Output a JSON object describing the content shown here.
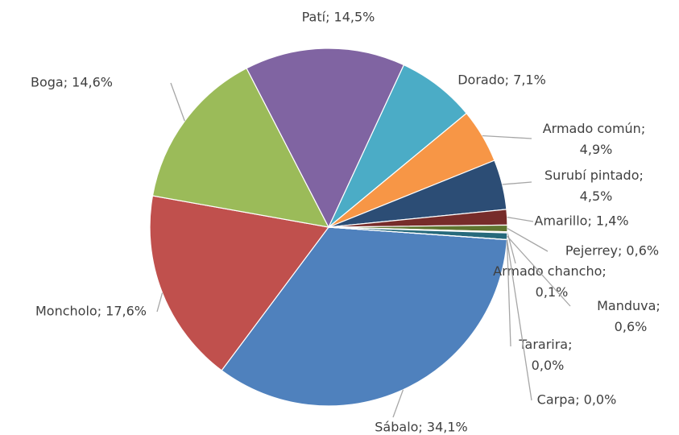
{
  "chart_data": {
    "type": "pie",
    "values": [
      34.1,
      17.6,
      14.6,
      14.5,
      7.1,
      4.9,
      4.5,
      1.4,
      0.6,
      0.1,
      0.6,
      0.0,
      0.0
    ],
    "value_labels": [
      "Sábalo; 34,1%",
      "Moncholo; 17,6%",
      "Boga; 14,6%",
      "Patí; 14,5%",
      "Dorado; 7,1%",
      "Armado común; 4,9%",
      "Surubí pintado; 4,5%",
      "Amarillo; 1,4%",
      "Pejerrey; 0,6%",
      "Armado chancho; 0,1%",
      "Manduva; 0,6%",
      "Tararira; 0,0%",
      "Carpa; 0,0%"
    ],
    "colors": [
      "#4f81bd",
      "#c0504d",
      "#9bbb59",
      "#8064a2",
      "#4bacc6",
      "#f79646",
      "#2c4d75",
      "#772c2a",
      "#5f7530",
      "#4d3b62",
      "#276a7c",
      "#b65708",
      "#729aca"
    ]
  }
}
